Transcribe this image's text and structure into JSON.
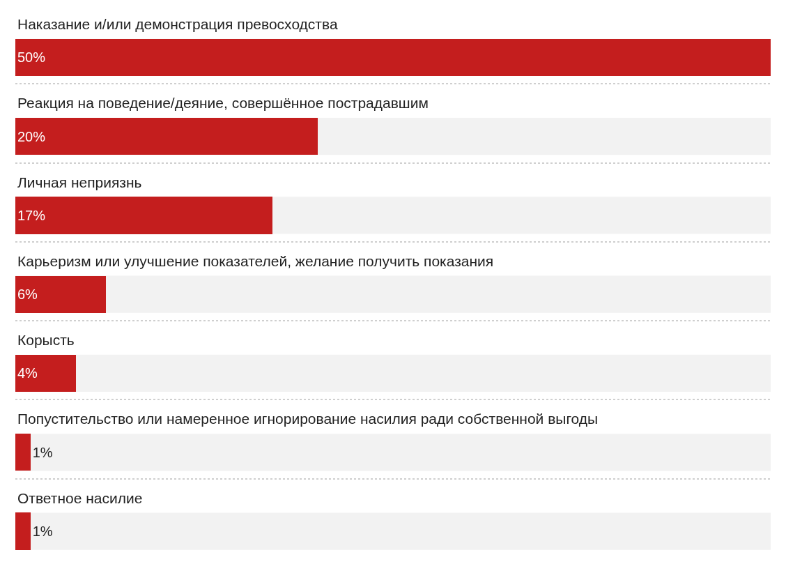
{
  "chart_data": {
    "type": "bar",
    "orientation": "horizontal",
    "categories": [
      "Наказание и/или демонстрация превосходства",
      "Реакция на поведение/деяние, совершённое пострадавшим",
      "Личная неприязнь",
      "Карьеризм или улучшение показателей, желание получить показания",
      "Корысть",
      "Попустительство или намеренное игнорирование насилия ради собственной выгоды",
      "Ответное насилие"
    ],
    "values": [
      50,
      20,
      17,
      6,
      4,
      1,
      1
    ],
    "value_labels": [
      "50%",
      "20%",
      "17%",
      "6%",
      "4%",
      "1%",
      "1%"
    ],
    "color": "#c41e1e",
    "xlim": [
      0,
      50
    ],
    "grid": "y",
    "tick_labels": "y"
  }
}
